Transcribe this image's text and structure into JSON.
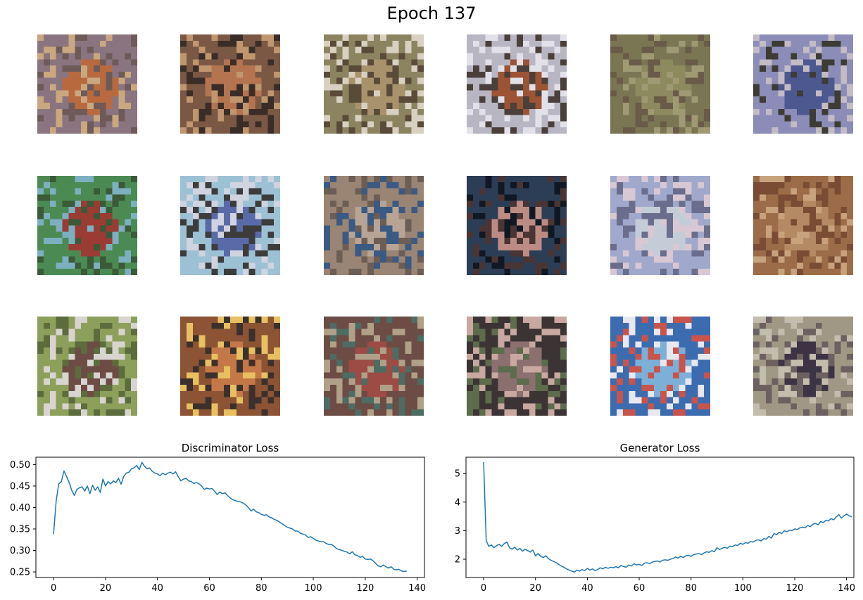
{
  "figure": {
    "title": "Epoch 137"
  },
  "samples": {
    "count": 18,
    "rows": 3,
    "cols": 6,
    "tiles": [
      {
        "colors": [
          "#8a7480",
          "#b86a3e",
          "#6e5a58",
          "#c9a880"
        ]
      },
      {
        "colors": [
          "#7a5844",
          "#b57450",
          "#3a2d28",
          "#c0966f"
        ]
      },
      {
        "colors": [
          "#8c8460",
          "#a8926c",
          "#5a4a38",
          "#d8d0c0"
        ]
      },
      {
        "colors": [
          "#b8b6c2",
          "#9c5434",
          "#4a3f3a",
          "#e2e0e8"
        ]
      },
      {
        "colors": [
          "#7a7654",
          "#8c8a5e",
          "#6a5a48",
          "#a09a74"
        ]
      },
      {
        "colors": [
          "#8c8cb8",
          "#4e5890",
          "#3c3c34",
          "#c4bcc4"
        ]
      },
      {
        "colors": [
          "#4c8a54",
          "#9a3c34",
          "#7cb0c0",
          "#3a5a38"
        ]
      },
      {
        "colors": [
          "#9cc0d4",
          "#5a6aa8",
          "#3c3c3c",
          "#d0d4e0"
        ]
      },
      {
        "colors": [
          "#9a8474",
          "#b8a494",
          "#3a5a84",
          "#6c5e54"
        ]
      },
      {
        "colors": [
          "#2c3e56",
          "#bc8c84",
          "#4a3434",
          "#101824"
        ]
      },
      {
        "colors": [
          "#a0a8cc",
          "#c4ccd8",
          "#6a6e8c",
          "#d8c8d4"
        ]
      },
      {
        "colors": [
          "#9c6c48",
          "#b48a64",
          "#7a4c34",
          "#c8a27c"
        ]
      },
      {
        "colors": [
          "#8ca05c",
          "#6c4c44",
          "#d8d4d0",
          "#5c6c3c"
        ]
      },
      {
        "colors": [
          "#8c5434",
          "#c47848",
          "#3c302c",
          "#e8c060"
        ]
      },
      {
        "colors": [
          "#6c4c44",
          "#9c4c44",
          "#4c6c64",
          "#b0a088"
        ]
      },
      {
        "colors": [
          "#3c3434",
          "#8c7070",
          "#c8a8a0",
          "#5c6c4c"
        ]
      },
      {
        "colors": [
          "#3c6cb0",
          "#7cb0d8",
          "#c8544c",
          "#e8e8f0"
        ]
      },
      {
        "colors": [
          "#a09884",
          "#3c3444",
          "#6c6060",
          "#c4bcac"
        ]
      }
    ]
  },
  "chart_data": [
    {
      "type": "line",
      "title": "Discriminator Loss",
      "xlabel": "",
      "ylabel": "",
      "xlim": [
        -6.8,
        142.8
      ],
      "ylim": [
        0.237,
        0.517
      ],
      "xticks": [
        0,
        20,
        40,
        60,
        80,
        100,
        120,
        140
      ],
      "yticks": [
        0.25,
        0.3,
        0.35,
        0.4,
        0.45,
        0.5
      ],
      "ytick_labels": [
        "0.25",
        "0.30",
        "0.35",
        "0.40",
        "0.45",
        "0.50"
      ],
      "line_color": "#1f77b4",
      "grid": false,
      "x_start": 0,
      "y": [
        0.338,
        0.415,
        0.455,
        0.46,
        0.485,
        0.472,
        0.458,
        0.44,
        0.428,
        0.442,
        0.446,
        0.448,
        0.438,
        0.45,
        0.432,
        0.452,
        0.44,
        0.448,
        0.435,
        0.466,
        0.45,
        0.46,
        0.455,
        0.462,
        0.458,
        0.468,
        0.454,
        0.472,
        0.48,
        0.482,
        0.49,
        0.492,
        0.498,
        0.488,
        0.505,
        0.496,
        0.49,
        0.492,
        0.484,
        0.48,
        0.478,
        0.474,
        0.48,
        0.476,
        0.48,
        0.482,
        0.478,
        0.483,
        0.472,
        0.462,
        0.466,
        0.468,
        0.462,
        0.46,
        0.456,
        0.458,
        0.455,
        0.45,
        0.442,
        0.445,
        0.443,
        0.444,
        0.438,
        0.43,
        0.436,
        0.432,
        0.434,
        0.428,
        0.422,
        0.418,
        0.416,
        0.414,
        0.413,
        0.41,
        0.406,
        0.4,
        0.392,
        0.396,
        0.39,
        0.388,
        0.384,
        0.382,
        0.383,
        0.378,
        0.376,
        0.372,
        0.37,
        0.366,
        0.362,
        0.358,
        0.354,
        0.352,
        0.35,
        0.345,
        0.345,
        0.34,
        0.338,
        0.336,
        0.33,
        0.332,
        0.328,
        0.324,
        0.322,
        0.32,
        0.32,
        0.316,
        0.314,
        0.314,
        0.31,
        0.304,
        0.302,
        0.3,
        0.298,
        0.296,
        0.292,
        0.297,
        0.29,
        0.288,
        0.284,
        0.286,
        0.28,
        0.279,
        0.28,
        0.276,
        0.27,
        0.264,
        0.262,
        0.266,
        0.262,
        0.259,
        0.262,
        0.256,
        0.255,
        0.256,
        0.252,
        0.251,
        0.252
      ]
    },
    {
      "type": "line",
      "title": "Generator Loss",
      "xlabel": "",
      "ylabel": "",
      "xlim": [
        -6.8,
        142.8
      ],
      "ylim": [
        1.36,
        5.57
      ],
      "xticks": [
        0,
        20,
        40,
        60,
        80,
        100,
        120,
        140
      ],
      "yticks": [
        2,
        3,
        4,
        5
      ],
      "ytick_labels": [
        "2",
        "3",
        "4",
        "5"
      ],
      "line_color": "#1f77b4",
      "grid": false,
      "x_start": 0,
      "y": [
        5.4,
        2.65,
        2.45,
        2.5,
        2.4,
        2.48,
        2.52,
        2.45,
        2.55,
        2.6,
        2.4,
        2.35,
        2.42,
        2.32,
        2.38,
        2.28,
        2.35,
        2.3,
        2.25,
        2.32,
        2.12,
        2.2,
        2.1,
        2.06,
        2.12,
        2.02,
        1.96,
        1.92,
        1.88,
        1.82,
        1.76,
        1.72,
        1.66,
        1.62,
        1.58,
        1.55,
        1.62,
        1.58,
        1.64,
        1.6,
        1.68,
        1.62,
        1.66,
        1.6,
        1.64,
        1.7,
        1.66,
        1.72,
        1.68,
        1.72,
        1.7,
        1.74,
        1.7,
        1.78,
        1.74,
        1.72,
        1.8,
        1.76,
        1.84,
        1.8,
        1.82,
        1.78,
        1.86,
        1.88,
        1.84,
        1.9,
        1.92,
        1.94,
        1.9,
        1.96,
        1.98,
        1.96,
        2.0,
        2.02,
        2.08,
        2.04,
        2.1,
        2.06,
        2.12,
        2.14,
        2.1,
        2.16,
        2.18,
        2.2,
        2.16,
        2.22,
        2.26,
        2.24,
        2.3,
        2.26,
        2.4,
        2.34,
        2.38,
        2.42,
        2.38,
        2.46,
        2.44,
        2.5,
        2.48,
        2.56,
        2.52,
        2.58,
        2.56,
        2.62,
        2.6,
        2.66,
        2.68,
        2.64,
        2.72,
        2.7,
        2.8,
        2.74,
        2.9,
        2.86,
        2.94,
        2.9,
        3.0,
        2.96,
        3.02,
        3.0,
        3.06,
        3.04,
        3.1,
        3.12,
        3.1,
        3.18,
        3.14,
        3.22,
        3.26,
        3.2,
        3.32,
        3.28,
        3.36,
        3.34,
        3.42,
        3.38,
        3.48,
        3.56,
        3.44,
        3.52,
        3.58,
        3.52,
        3.48
      ]
    }
  ]
}
